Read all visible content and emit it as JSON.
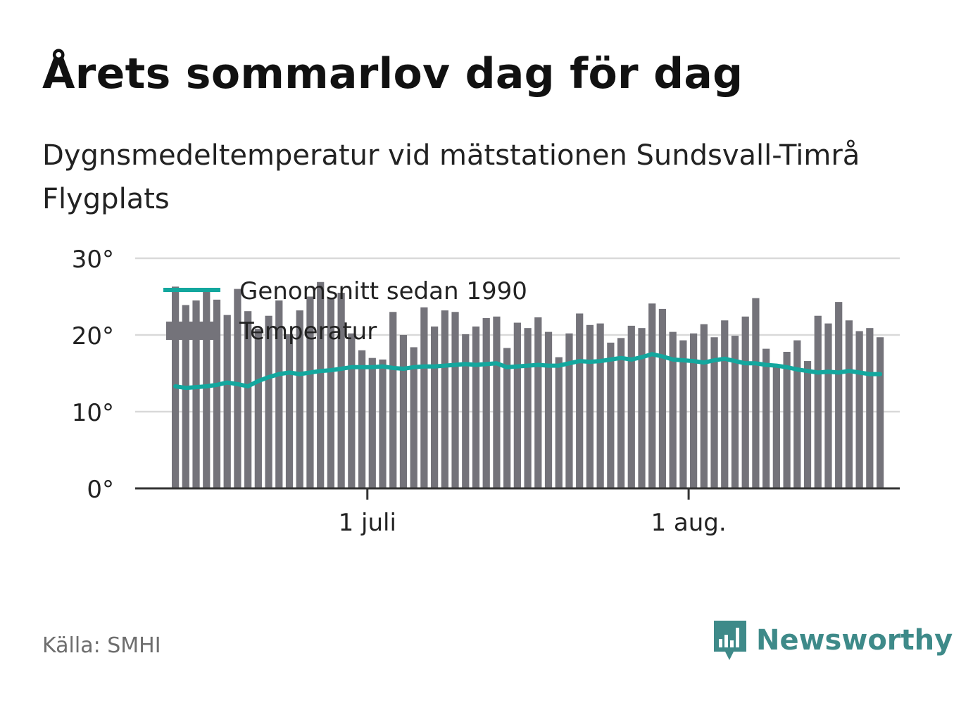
{
  "title": "Årets sommarlov dag för dag",
  "subtitle": "Dygnsmedeltemperatur vid mätstationen Sundsvall-Timrå Flygplats",
  "source": "Källa: SMHI",
  "brand": "Newsworthy",
  "colors": {
    "bar_temp": "#74737a",
    "bar_background": "#e3e3e3",
    "avg_line": "#13a79e",
    "grid": "#d9d9d9",
    "axis": "#333333",
    "brand": "#3e8a89"
  },
  "chart_data": {
    "type": "bar",
    "start_date": "2023-06-12",
    "x_tick_labels": [
      {
        "label": "1 juli",
        "date": "2023-07-01"
      },
      {
        "label": "1 aug.",
        "date": "2023-08-01"
      }
    ],
    "y_ticks": [
      {
        "value": 0,
        "label": "0°"
      },
      {
        "value": 10,
        "label": "10°"
      },
      {
        "value": 20,
        "label": "20°"
      },
      {
        "value": 30,
        "label": "30°"
      }
    ],
    "ylim": [
      0,
      30
    ],
    "grid": true,
    "legend_position": "top-left",
    "series": [
      {
        "name": "Temperatur",
        "kind": "bar",
        "values": [
          26.3,
          23.9,
          24.5,
          25.7,
          24.6,
          22.6,
          26.0,
          23.1,
          20.8,
          22.5,
          24.5,
          20.1,
          23.2,
          25.0,
          26.9,
          24.7,
          25.5,
          20.2,
          18.0,
          17.0,
          16.8,
          23.0,
          20.0,
          18.4,
          23.6,
          21.1,
          23.2,
          23.0,
          20.1,
          21.1,
          22.2,
          22.4,
          18.3,
          21.6,
          20.9,
          22.3,
          20.4,
          17.1,
          20.2,
          22.8,
          21.3,
          21.5,
          19.0,
          19.6,
          21.2,
          20.9,
          24.1,
          23.4,
          20.4,
          19.3,
          20.2,
          21.4,
          19.7,
          21.9,
          19.9,
          22.4,
          24.8,
          18.2,
          16.1,
          17.8,
          19.3,
          16.6,
          22.5,
          21.5,
          24.3,
          21.9,
          20.5,
          20.9,
          19.7
        ]
      },
      {
        "name": "Genomsnitt sedan 1990",
        "kind": "line",
        "values": [
          13.3,
          13.1,
          13.2,
          13.3,
          13.5,
          13.8,
          13.6,
          13.3,
          14.0,
          14.5,
          14.9,
          15.1,
          14.9,
          15.1,
          15.3,
          15.4,
          15.6,
          15.8,
          15.8,
          15.8,
          15.9,
          15.7,
          15.6,
          15.8,
          15.9,
          15.9,
          16.0,
          16.1,
          16.2,
          16.1,
          16.2,
          16.3,
          15.8,
          15.9,
          16.0,
          16.1,
          16.0,
          16.0,
          16.3,
          16.6,
          16.5,
          16.6,
          16.8,
          17.0,
          16.8,
          17.1,
          17.5,
          17.2,
          16.8,
          16.7,
          16.6,
          16.4,
          16.7,
          16.9,
          16.6,
          16.3,
          16.3,
          16.1,
          16.0,
          15.8,
          15.5,
          15.3,
          15.1,
          15.2,
          15.1,
          15.3,
          15.1,
          14.9,
          14.9
        ]
      }
    ]
  }
}
